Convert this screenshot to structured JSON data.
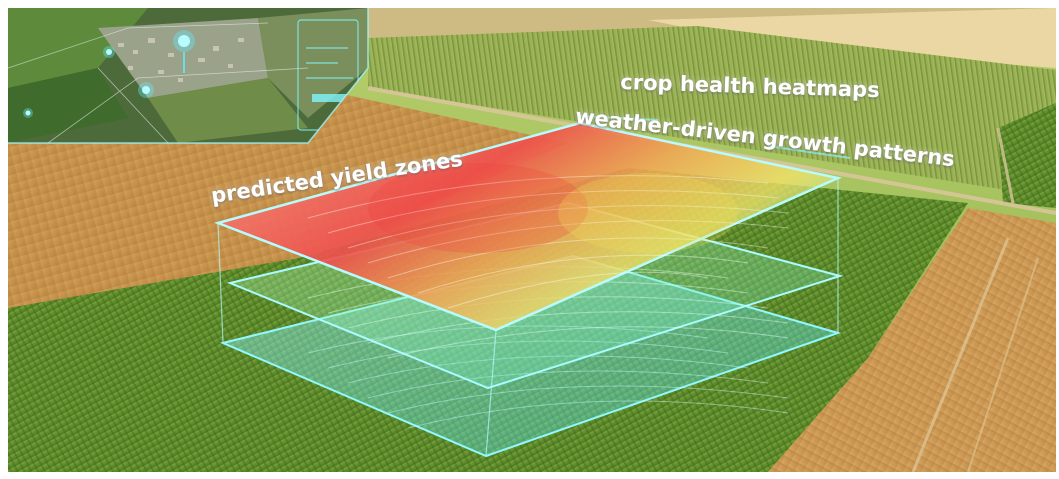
{
  "labels": {
    "predicted_yield": "predicted yield zones",
    "crop_health": "crop health heatmaps",
    "weather_growth": "weather-driven growth patterns"
  },
  "colors": {
    "wheat": "#c9964f",
    "corn_green": "#5f8b2c",
    "hologram_cyan": "#5ff3ff",
    "heat_red": "#ef3f3c",
    "heat_yellow": "#f4e25a"
  },
  "icons": {
    "map_pin": "location-pin-icon"
  }
}
